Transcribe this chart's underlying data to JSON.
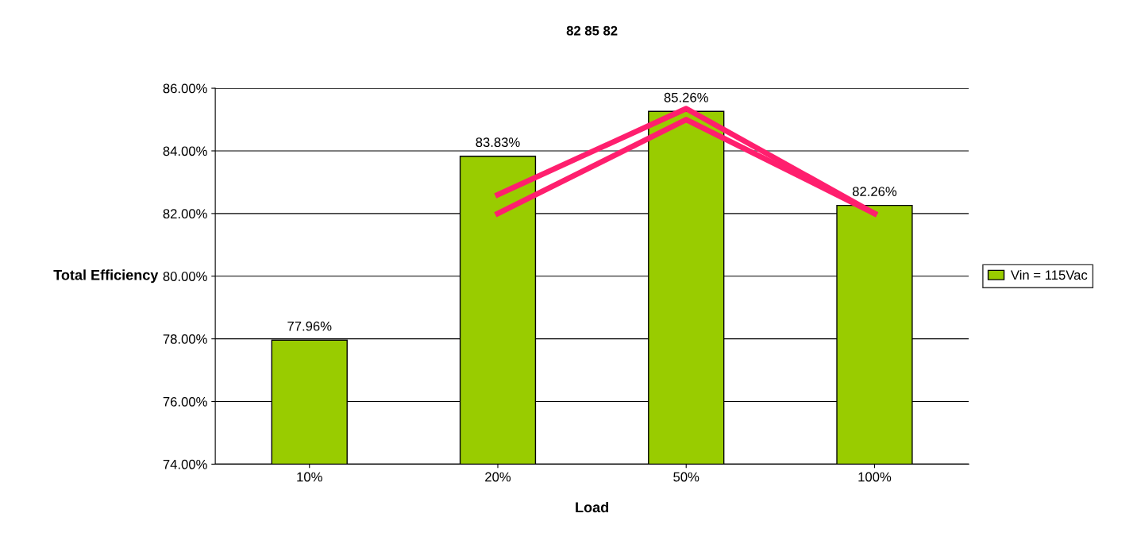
{
  "chart_data": {
    "type": "bar",
    "title": "82 85 82",
    "xlabel": "Load",
    "ylabel": "Total Efficiency",
    "categories": [
      "10%",
      "20%",
      "50%",
      "100%"
    ],
    "series": [
      {
        "name": "Vin = 115Vac",
        "color": "#99cc00",
        "values": [
          77.96,
          83.83,
          85.26,
          82.26
        ],
        "value_labels": [
          "77.96%",
          "83.83%",
          "85.26%",
          "82.26%"
        ]
      },
      {
        "type": "line",
        "color": "#ff1f6e",
        "values": [
          null,
          82.0,
          85.0,
          82.0
        ]
      },
      {
        "type": "line",
        "color": "#ff1f6e",
        "values": [
          null,
          82.6,
          85.35,
          82.0
        ]
      }
    ],
    "ylim": [
      74,
      86
    ],
    "yticks": [
      {
        "value": 74,
        "label": "74.00%"
      },
      {
        "value": 76,
        "label": "76.00%"
      },
      {
        "value": 78,
        "label": "78.00%"
      },
      {
        "value": 80,
        "label": "80.00%"
      },
      {
        "value": 82,
        "label": "82.00%"
      },
      {
        "value": 84,
        "label": "84.00%"
      },
      {
        "value": 86,
        "label": "86.00%"
      }
    ],
    "grid": "y",
    "legend": "right",
    "marker": "none",
    "line_style": "solid"
  }
}
